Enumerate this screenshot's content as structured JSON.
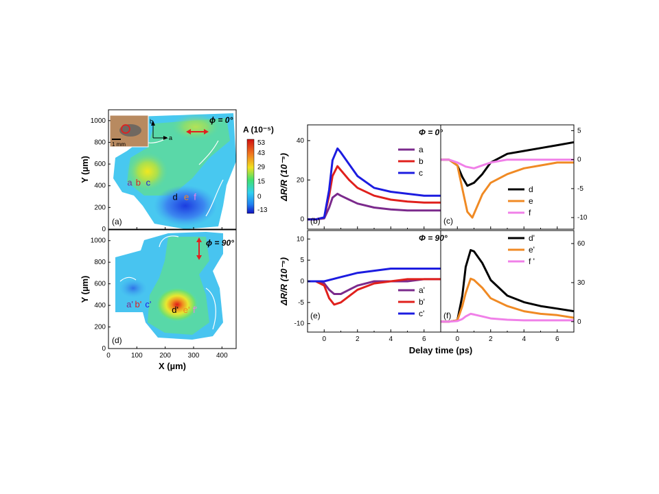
{
  "chart_data": [
    {
      "type": "heatmap",
      "panel": "(a)",
      "xlim": [
        0,
        450
      ],
      "ylim": [
        0,
        1100
      ],
      "xticks": [
        0,
        100,
        200,
        300,
        400
      ],
      "yticks": [
        0,
        200,
        400,
        600,
        800,
        1000
      ],
      "ylabel": "Y (µm)",
      "angle_label": "ϕ = 0°",
      "colorbar": {
        "label": "A (10⁻⁵)",
        "ticks": [
          53,
          43,
          29,
          15,
          0,
          -13
        ],
        "range": [
          -13,
          53
        ]
      },
      "inset": {
        "scale_label": "1 mm",
        "axis_a": "a",
        "axis_b": "b"
      },
      "points": [
        {
          "label": "a",
          "x": 75,
          "y": 400,
          "color": "#7b2a8c"
        },
        {
          "label": "b",
          "x": 105,
          "y": 400,
          "color": "#e0201c"
        },
        {
          "label": "c",
          "x": 140,
          "y": 400,
          "color": "#1c1ce0"
        },
        {
          "label": "d",
          "x": 235,
          "y": 270,
          "color": "#000000"
        },
        {
          "label": "e",
          "x": 275,
          "y": 270,
          "color": "#f08a24"
        },
        {
          "label": "f",
          "x": 305,
          "y": 270,
          "color": "#f080e8"
        }
      ]
    },
    {
      "type": "heatmap",
      "panel": "(d)",
      "xlim": [
        0,
        450
      ],
      "ylim": [
        0,
        1100
      ],
      "xticks": [
        0,
        100,
        200,
        300,
        400
      ],
      "yticks": [
        0,
        200,
        400,
        600,
        800,
        1000
      ],
      "xlabel": "X (µm)",
      "ylabel": "Y (µm)",
      "angle_label": "ϕ = 90°",
      "points": [
        {
          "label": "a'",
          "x": 75,
          "y": 380,
          "color": "#7b2a8c"
        },
        {
          "label": "b'",
          "x": 105,
          "y": 380,
          "color": "#e0201c"
        },
        {
          "label": "c'",
          "x": 140,
          "y": 380,
          "color": "#1c1ce0"
        },
        {
          "label": "d'",
          "x": 235,
          "y": 330,
          "color": "#000000"
        },
        {
          "label": "e'",
          "x": 275,
          "y": 330,
          "color": "#f08a24"
        },
        {
          "label": "f'",
          "x": 305,
          "y": 330,
          "color": "#f080e8"
        }
      ]
    },
    {
      "type": "line",
      "panel": "(b)",
      "xlim": [
        -1,
        7
      ],
      "ylim": [
        -5,
        48
      ],
      "yticks": [
        0,
        20,
        40
      ],
      "ylabel": "ΔR/R (10⁻⁵)",
      "series": [
        {
          "name": "a",
          "color": "#7b2a8c",
          "x": [
            -1,
            -0.5,
            0,
            0.3,
            0.5,
            0.8,
            1,
            1.5,
            2,
            3,
            4,
            5,
            6,
            7
          ],
          "y": [
            0,
            0,
            0.5,
            6,
            11,
            13,
            12,
            10,
            8,
            6,
            5,
            4.5,
            4.5,
            4.5
          ]
        },
        {
          "name": "b",
          "color": "#e0201c",
          "x": [
            -1,
            -0.5,
            0,
            0.3,
            0.5,
            0.8,
            1,
            1.5,
            2,
            3,
            4,
            5,
            6,
            7
          ],
          "y": [
            0,
            0,
            1,
            12,
            22,
            27,
            25,
            20,
            16,
            12,
            10,
            9,
            8.5,
            8.5
          ]
        },
        {
          "name": "c",
          "color": "#1c1ce0",
          "x": [
            -1,
            -0.5,
            0,
            0.3,
            0.5,
            0.8,
            1,
            1.5,
            2,
            3,
            4,
            5,
            6,
            7
          ],
          "y": [
            0,
            0,
            1,
            15,
            30,
            36,
            34,
            28,
            22,
            16,
            14,
            13,
            12,
            12
          ]
        }
      ]
    },
    {
      "type": "line",
      "panel": "(c)",
      "xlim": [
        -1,
        7
      ],
      "ylim": [
        -12,
        6
      ],
      "yticks": [
        5,
        0,
        -5,
        -10
      ],
      "angle_label": "Φ = 0°",
      "series": [
        {
          "name": "d",
          "color": "#000000",
          "x": [
            -1,
            -0.5,
            0,
            0.3,
            0.6,
            1,
            1.5,
            2,
            3,
            4,
            5,
            6,
            7
          ],
          "y": [
            0,
            0,
            -1,
            -3,
            -4.5,
            -4,
            -2.5,
            -0.5,
            1,
            1.5,
            2,
            2.5,
            3
          ]
        },
        {
          "name": "e",
          "color": "#f08a24",
          "x": [
            -1,
            -0.5,
            0,
            0.3,
            0.6,
            0.9,
            1.2,
            1.5,
            2,
            3,
            4,
            5,
            6,
            7
          ],
          "y": [
            0,
            0,
            -1,
            -5,
            -9,
            -10,
            -8,
            -6,
            -4,
            -2.5,
            -1.5,
            -1,
            -0.5,
            -0.5
          ]
        },
        {
          "name": "f",
          "color": "#f080e8",
          "x": [
            -1,
            -0.5,
            0,
            0.5,
            1,
            1.5,
            2,
            3,
            4,
            5,
            6,
            7
          ],
          "y": [
            0,
            0,
            -0.5,
            -1.2,
            -1.5,
            -1,
            -0.5,
            0,
            0,
            0,
            0,
            0
          ]
        }
      ]
    },
    {
      "type": "line",
      "panel": "(e)",
      "xlim": [
        -1,
        7
      ],
      "ylim": [
        -12,
        12
      ],
      "xticks": [
        0,
        2,
        4,
        6
      ],
      "yticks": [
        10,
        5,
        0,
        -5,
        -10
      ],
      "ylabel": "ΔR/R (10⁻⁵)",
      "angle_label": "Φ = 90°",
      "series": [
        {
          "name": "a'",
          "color": "#7b2a8c",
          "x": [
            -1,
            -0.5,
            0,
            0.3,
            0.6,
            1,
            1.5,
            2,
            3,
            4,
            5,
            6,
            7
          ],
          "y": [
            0,
            0,
            -0.5,
            -2,
            -3,
            -3,
            -2,
            -1,
            0,
            0,
            0,
            0.5,
            0.5
          ]
        },
        {
          "name": "b'",
          "color": "#e0201c",
          "x": [
            -1,
            -0.5,
            0,
            0.3,
            0.6,
            1,
            1.5,
            2,
            3,
            4,
            5,
            6,
            7
          ],
          "y": [
            0,
            0,
            -1,
            -4,
            -5.5,
            -5,
            -3.5,
            -2,
            -0.5,
            0,
            0.5,
            0.5,
            0.5
          ]
        },
        {
          "name": "c'",
          "color": "#1c1ce0",
          "x": [
            -1,
            -0.5,
            0,
            0.5,
            1,
            1.5,
            2,
            3,
            4,
            5,
            6,
            7
          ],
          "y": [
            0,
            0,
            0,
            0.5,
            1,
            1.5,
            2,
            2.5,
            3,
            3,
            3,
            3
          ]
        }
      ]
    },
    {
      "type": "line",
      "panel": "(f)",
      "xlim": [
        -1,
        7
      ],
      "ylim": [
        -8,
        70
      ],
      "xticks": [
        0,
        2,
        4,
        6
      ],
      "yticks": [
        60,
        30,
        0
      ],
      "xlabel": "Delay time (ps)",
      "series": [
        {
          "name": "d'",
          "color": "#000000",
          "x": [
            -1,
            -0.5,
            0,
            0.3,
            0.5,
            0.8,
            1,
            1.5,
            2,
            3,
            4,
            5,
            6,
            7
          ],
          "y": [
            0,
            0,
            1,
            20,
            42,
            55,
            54,
            45,
            32,
            20,
            15,
            12,
            10,
            8
          ]
        },
        {
          "name": "e'",
          "color": "#f08a24",
          "x": [
            -1,
            -0.5,
            0,
            0.3,
            0.5,
            0.8,
            1,
            1.5,
            2,
            3,
            4,
            5,
            6,
            7
          ],
          "y": [
            0,
            0,
            1,
            12,
            22,
            33,
            32,
            26,
            18,
            12,
            8,
            6,
            5,
            3
          ]
        },
        {
          "name": "f '",
          "color": "#f080e8",
          "x": [
            -1,
            -0.5,
            0,
            0.3,
            0.5,
            0.8,
            1,
            1.5,
            2,
            3,
            4,
            5,
            6,
            7
          ],
          "y": [
            0,
            0,
            0.5,
            2,
            4,
            6,
            5.5,
            4,
            2.5,
            1.5,
            1,
            1,
            1,
            1
          ]
        }
      ]
    }
  ]
}
